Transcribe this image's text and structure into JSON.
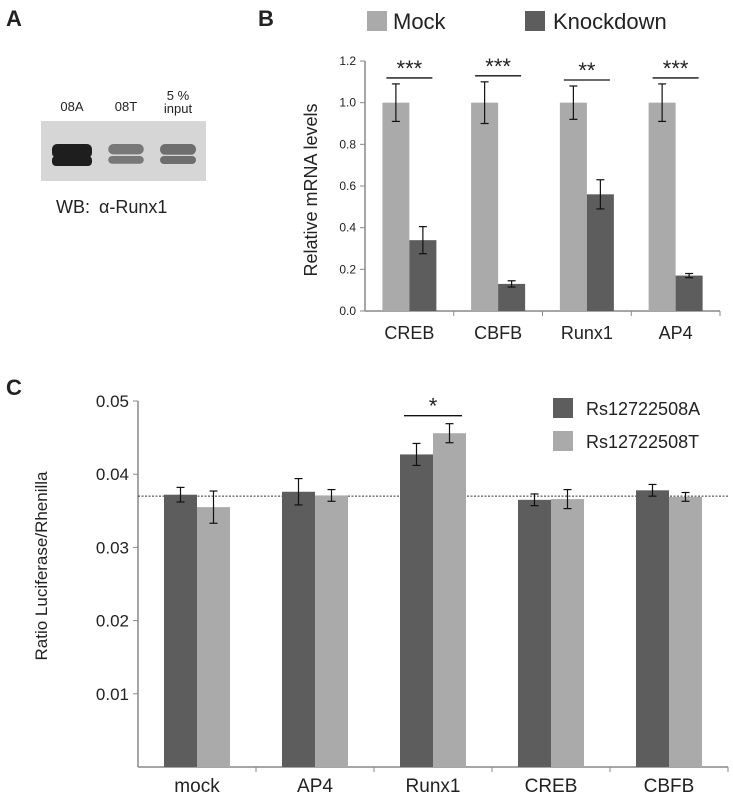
{
  "colors": {
    "mock": "#aaaaaa",
    "knockdown": "#5d5d5d",
    "allele_a": "#5d5d5d",
    "allele_t": "#aaaaaa",
    "axis": "#888888"
  },
  "panel_a": {
    "letter": "A",
    "lanes": [
      {
        "label": "08A",
        "intensity": 1.0
      },
      {
        "label": "08T",
        "intensity": 0.55
      },
      {
        "label_line1": "5 %",
        "label_line2": "input",
        "intensity": 0.6
      }
    ],
    "wb_label": "WB:",
    "wb_antibody": "α-Runx1"
  },
  "chart_data": [
    {
      "panel": "B",
      "type": "bar",
      "categories": [
        "CREB",
        "CBFB",
        "Runx1",
        "AP4"
      ],
      "series": [
        {
          "name": "Mock",
          "values": [
            1.0,
            1.0,
            1.0,
            1.0
          ],
          "errors": [
            0.09,
            0.1,
            0.08,
            0.09
          ]
        },
        {
          "name": "Knockdown",
          "values": [
            0.34,
            0.13,
            0.56,
            0.17
          ],
          "errors": [
            0.065,
            0.015,
            0.07,
            0.01
          ]
        }
      ],
      "significance": [
        "***",
        "***",
        "**",
        "***"
      ],
      "ylabel": "Relative mRNA levels",
      "ylim": [
        0,
        1.2
      ],
      "yticks": [
        "0.0",
        "0.2",
        "0.4",
        "0.6",
        "0.8",
        "1.0",
        "1.2"
      ],
      "legend_position": "top"
    },
    {
      "panel": "C",
      "type": "bar",
      "categories": [
        "mock",
        "AP4",
        "Runx1",
        "CREB",
        "CBFB"
      ],
      "series": [
        {
          "name": "Rs12722508A",
          "values": [
            0.0372,
            0.0376,
            0.0427,
            0.0365,
            0.0378
          ],
          "errors": [
            0.001,
            0.0018,
            0.0015,
            0.0008,
            0.0008
          ]
        },
        {
          "name": "Rs12722508T",
          "values": [
            0.0355,
            0.0371,
            0.0456,
            0.0366,
            0.0369
          ],
          "errors": [
            0.0022,
            0.0008,
            0.0013,
            0.0013,
            0.0006
          ]
        }
      ],
      "significance": [
        "",
        "",
        "*",
        "",
        ""
      ],
      "reference_line": 0.037,
      "ylabel": "Ratio Luciferase/Rhenilla",
      "ylim": [
        0,
        0.05
      ],
      "yticks": [
        "0.01",
        "0.02",
        "0.03",
        "0.04",
        "0.05"
      ],
      "legend_position": "top-right"
    }
  ]
}
